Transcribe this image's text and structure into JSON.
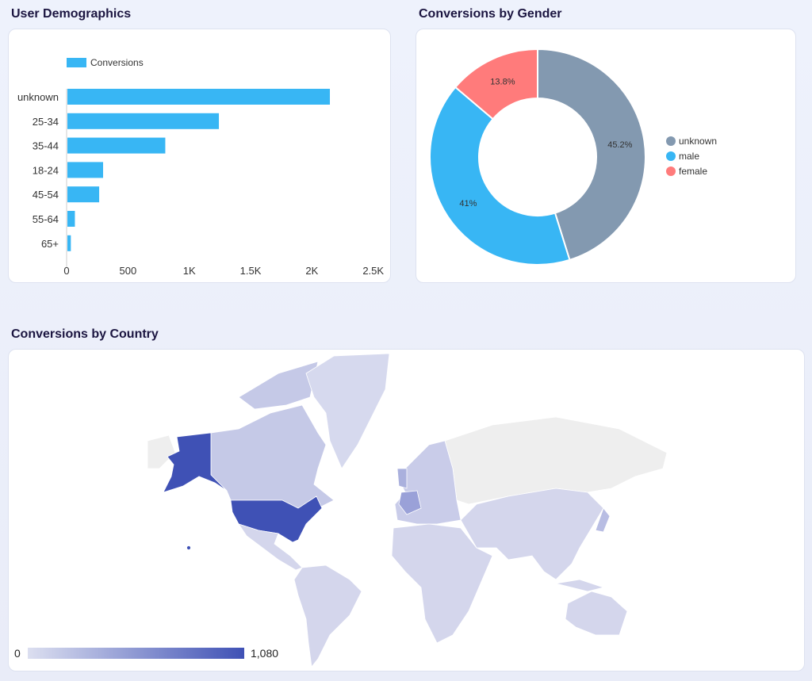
{
  "chart_data": [
    {
      "type": "bar",
      "orientation": "horizontal",
      "title": "User Demographics",
      "legend": [
        "Conversions"
      ],
      "categories": [
        "unknown",
        "25-34",
        "35-44",
        "18-24",
        "45-54",
        "55-64",
        "65+"
      ],
      "values": [
        2140,
        1235,
        798,
        291,
        259,
        61,
        28
      ],
      "xlim": [
        0,
        2500
      ],
      "xticks": [
        "0",
        "500",
        "1K",
        "1.5K",
        "2K",
        "2.5K"
      ],
      "color": "#38b6f4"
    },
    {
      "type": "pie",
      "donut": true,
      "title": "Conversions by Gender",
      "legend_position": "right",
      "slices": [
        {
          "label": "unknown",
          "value": 45.2,
          "text": "45.2%",
          "color": "#8399b0"
        },
        {
          "label": "male",
          "value": 41,
          "text": "41%",
          "color": "#38b6f4"
        },
        {
          "label": "female",
          "value": 13.8,
          "text": "13.8%",
          "color": "#ff7b7b"
        }
      ]
    },
    {
      "type": "map",
      "title": "Conversions by Country",
      "scale_min": "0",
      "scale_max": "1,080",
      "color_low": "#dcdff0",
      "color_high": "#3f51b5",
      "highlighted": [
        "United States"
      ]
    }
  ]
}
